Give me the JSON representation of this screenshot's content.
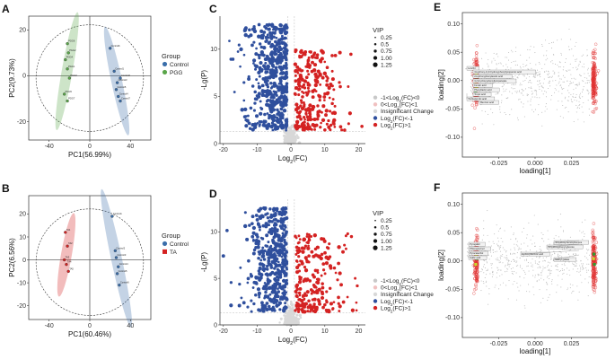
{
  "panels": {
    "A": {
      "label": "A",
      "chart_data": {
        "type": "scatter",
        "title": "",
        "xlabel": "PC1(56.99%)",
        "ylabel": "PC2(9.73%)",
        "xlim": [
          -60,
          60
        ],
        "ylim": [
          -28,
          26
        ],
        "xticks": [
          -40,
          0,
          40
        ],
        "yticks": [
          -20,
          0,
          20
        ],
        "legend_title": "Group",
        "legend_placement": "right",
        "series": [
          {
            "name": "Control",
            "color": "#3a6eaa",
            "points": [
              [
                20,
                12
              ],
              [
                24,
                2
              ],
              [
                27,
                -3
              ],
              [
                30,
                -1
              ],
              [
                26,
                -6
              ],
              [
                28,
                -9
              ],
              [
                30,
                -11
              ]
            ],
            "labels": [
              "Control6",
              "Control1",
              "Control3",
              "Control2",
              "Control5",
              "Control4",
              "Control7"
            ]
          },
          {
            "name": "PGG",
            "color": "#5aa64a",
            "points": [
              [
                -22,
                14
              ],
              [
                -21,
                10
              ],
              [
                -24,
                7
              ],
              [
                -22,
                3
              ],
              [
                -20,
                -1
              ],
              [
                -25,
                -8
              ],
              [
                -22,
                -11
              ]
            ],
            "labels": [
              "PGG6",
              "PGG2",
              "PGG4",
              "PGG1",
              "PGG3",
              "PGG5",
              "PGG7"
            ]
          }
        ]
      }
    },
    "B": {
      "label": "B",
      "chart_data": {
        "type": "scatter",
        "title": "",
        "xlabel": "PC1(60.46%)",
        "ylabel": "PC2(6.56%)",
        "xlim": [
          -60,
          60
        ],
        "ylim": [
          -26,
          28
        ],
        "xticks": [
          -40,
          0,
          40
        ],
        "yticks": [
          -20,
          -10,
          0,
          10,
          20
        ],
        "legend_title": "Group",
        "legend_placement": "right",
        "series": [
          {
            "name": "Control",
            "color": "#3a6eaa",
            "points": [
              [
                22,
                19
              ],
              [
                25,
                4
              ],
              [
                26,
                1
              ],
              [
                28,
                -3
              ],
              [
                27,
                -6
              ],
              [
                29,
                -11
              ]
            ],
            "labels": [
              "Control1",
              "Control2",
              "Control3",
              "Control4",
              "Control5",
              "Control6"
            ]
          },
          {
            "name": "TA",
            "color": "#d42222",
            "points": [
              [
                -24,
                12
              ],
              [
                -22,
                6
              ],
              [
                -25,
                0
              ],
              [
                -23,
                -2
              ],
              [
                -21,
                -5
              ]
            ],
            "labels": [
              "TA1",
              "TA2",
              "TA3",
              "TA4",
              "TA5"
            ]
          }
        ]
      }
    },
    "C": {
      "label": "C",
      "chart_data": {
        "type": "scatter",
        "title": "",
        "xlabel": "Log2(FC)",
        "ylabel": "-Lg(P)",
        "xlim": [
          -21,
          22
        ],
        "ylim": [
          0,
          13.5
        ],
        "xticks": [
          -20,
          -10,
          0,
          10,
          20
        ],
        "yticks": [
          0,
          5,
          10
        ],
        "threshold_x": [
          -1,
          1
        ],
        "threshold_y": 1.3,
        "vip_legend_title": "VIP",
        "vip_sizes": [
          "0.25",
          "0.5",
          "0.75",
          "1.00",
          "1.25"
        ],
        "legend": [
          {
            "name": "-1<Log2(FC)<0",
            "color": "#c8c8c8"
          },
          {
            "name": "0<Log2(FC)<1",
            "color": "#f0c0c0"
          },
          {
            "name": "Insignificant Change",
            "color": "#d8d8d8"
          },
          {
            "name": "Log2(FC)<-1",
            "color": "#2f4f9d"
          },
          {
            "name": "Log2(FC)>1",
            "color": "#d42222"
          }
        ],
        "point_counts": {
          "down": 520,
          "up": 260,
          "insignificant": 150
        },
        "seed": 11
      }
    },
    "D": {
      "label": "D",
      "chart_data": {
        "type": "scatter",
        "title": "",
        "xlabel": "Log2(FC)",
        "ylabel": "-Lg(P)",
        "xlim": [
          -21,
          22
        ],
        "ylim": [
          0,
          13.5
        ],
        "xticks": [
          -20,
          -10,
          0,
          10,
          20
        ],
        "yticks": [
          0,
          5,
          10
        ],
        "threshold_x": [
          -1,
          1
        ],
        "threshold_y": 1.3,
        "vip_legend_title": "VIP",
        "vip_sizes": [
          "0.25",
          "0.5",
          "0.75",
          "1.00",
          "1.25"
        ],
        "legend": [
          {
            "name": "-1<Log2(FC)<0",
            "color": "#c8c8c8"
          },
          {
            "name": "0<Log2(FC)<1",
            "color": "#f0c0c0"
          },
          {
            "name": "Insignificant Change",
            "color": "#d8d8d8"
          },
          {
            "name": "Log2(FC)<-1",
            "color": "#2f4f9d"
          },
          {
            "name": "Log2(FC)>1",
            "color": "#d42222"
          }
        ],
        "point_counts": {
          "down": 480,
          "up": 230,
          "insignificant": 150
        },
        "seed": 29
      }
    },
    "E": {
      "label": "E",
      "chart_data": {
        "type": "scatter",
        "title": "",
        "xlabel": "loading[1]",
        "ylabel": "loading[2]",
        "xlim": [
          -0.05,
          0.05
        ],
        "ylim": [
          -0.135,
          0.12
        ],
        "xticks": [
          -0.025,
          0,
          0.025
        ],
        "xtick_labels": [
          "-0.025",
          "0.000",
          "0.025"
        ],
        "yticks": [
          -0.1,
          -0.05,
          0,
          0.05,
          0.1
        ],
        "ytick_labels": [
          "-0.10",
          "-0.05",
          "0.00",
          "0.05",
          "0.10"
        ],
        "highlight_points": [
          [
            -0.0405,
            0.012
          ],
          [
            -0.0402,
            0.006
          ],
          [
            -0.0408,
            -0.002
          ],
          [
            -0.04,
            -0.008
          ],
          [
            -0.0404,
            -0.014
          ],
          [
            -0.0409,
            -0.02
          ]
        ],
        "annotations": [
          "Lonchil",
          "3-Hydroxy-3-(3-hydroxyphenyl)propanoic acid",
          "2-Hydroxyphenylacetic acid",
          "3-(3-hydroxyphenyl)propanoate",
          "Ferulic acid",
          "Phenyllactic acid",
          "Tropic acid",
          "Trans-Ferulic acid",
          "Benzoic acid"
        ],
        "seed": 5
      }
    },
    "F": {
      "label": "F",
      "chart_data": {
        "type": "scatter",
        "title": "",
        "xlabel": "loading[1]",
        "ylabel": "loading[2]",
        "xlim": [
          -0.05,
          0.05
        ],
        "ylim": [
          -0.135,
          0.12
        ],
        "xticks": [
          -0.025,
          0,
          0.025
        ],
        "xtick_labels": [
          "-0.025",
          "0.000",
          "0.025"
        ],
        "yticks": [
          -0.1,
          -0.05,
          0,
          0.05,
          0.1
        ],
        "ytick_labels": [
          "-0.10",
          "-0.05",
          "0.00",
          "0.05",
          "0.10"
        ],
        "highlight_points": [
          [
            -0.0405,
            0.01
          ],
          [
            -0.0402,
            0.004
          ],
          [
            -0.0408,
            -0.006
          ],
          [
            0.0405,
            0.012
          ],
          [
            0.0402,
            0.004
          ],
          [
            0.0408,
            -0.006
          ]
        ],
        "annotations": [
          "Pyrogallol",
          "Phloroglucinol",
          "Pyrocatechol",
          "Gallic acid",
          "Trihydroxy-benzophenone",
          "Trihydroxyphenyl-glucose",
          "Hydroxybenzoic acid",
          "Methyl gallate"
        ],
        "seed": 17
      }
    }
  }
}
